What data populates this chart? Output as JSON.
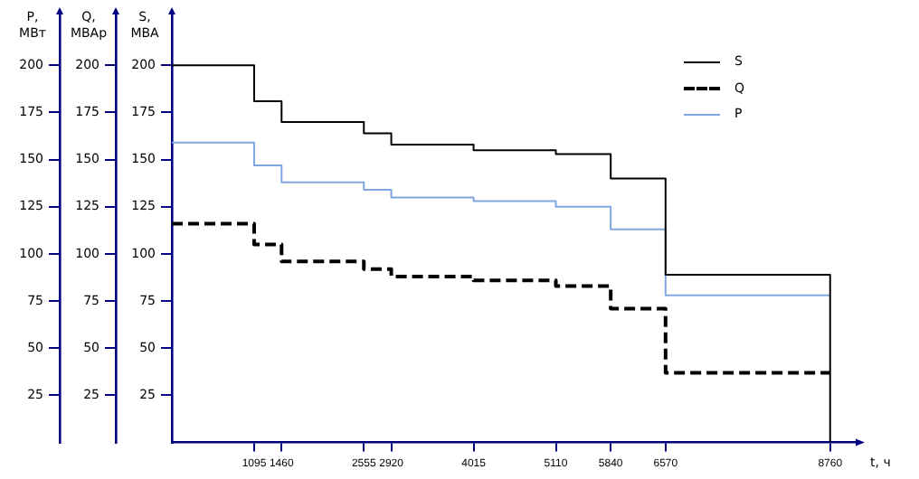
{
  "chart_data": {
    "type": "step",
    "xlabel": "t, ч",
    "ylabel": "P,\nМВт",
    "y2label": "Q,\nМВАр",
    "y3label": "S,\nМВА",
    "xlim": [
      0,
      9100
    ],
    "xticks": [
      1095,
      1460,
      2555,
      2920,
      4015,
      5110,
      5840,
      6570,
      8760
    ],
    "ylim": [
      0,
      227
    ],
    "yticks": [
      25,
      50,
      75,
      100,
      125,
      150,
      175,
      200
    ],
    "y2lim": [
      0,
      227
    ],
    "y2ticks": [
      25,
      50,
      75,
      100,
      125,
      150,
      175,
      200
    ],
    "y3lim": [
      0,
      227
    ],
    "y3ticks": [
      25,
      50,
      75,
      100,
      125,
      150,
      175,
      200
    ],
    "x": [
      0,
      1095,
      1460,
      2555,
      2920,
      4015,
      5110,
      5840,
      6570,
      8760
    ],
    "series": [
      {
        "name": "S",
        "color": "#000000",
        "line_style": "solid",
        "x": [
          0,
          1095,
          1460,
          2555,
          2920,
          4015,
          5110,
          5840,
          6570,
          8760,
          8760
        ],
        "values": [
          200,
          181,
          170,
          164,
          158,
          155,
          153,
          140,
          89,
          89,
          0
        ]
      },
      {
        "name": "Q",
        "color": "#000000",
        "line_style": "dashed",
        "values": [
          116,
          105,
          96,
          92,
          88,
          86,
          83,
          71,
          37,
          37
        ]
      },
      {
        "name": "P",
        "color": "#7ea6e0",
        "line_style": "solid",
        "values": [
          159,
          147,
          138,
          134,
          130,
          128,
          125,
          113,
          78,
          78
        ]
      }
    ],
    "grid": false,
    "legend": "top right",
    "marker": "none"
  }
}
